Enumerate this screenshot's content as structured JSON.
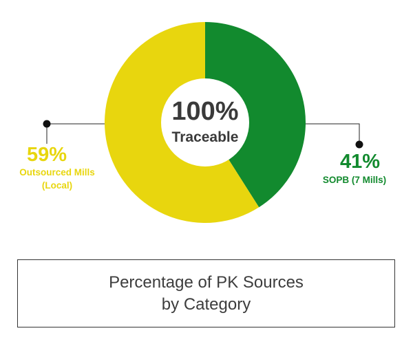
{
  "chart_data": {
    "type": "pie",
    "variant": "donut",
    "center_label": {
      "value": "100%",
      "text": "Traceable"
    },
    "slices": [
      {
        "label": "SOPB (7 Mills)",
        "value": 41,
        "value_label": "41%",
        "color": "#128a2e"
      },
      {
        "label_lines": [
          "Outsourced Mills",
          "(Local)"
        ],
        "value": 59,
        "value_label": "59%",
        "color": "#e8d60e"
      }
    ],
    "legend": "none",
    "colors": {
      "center_text": "#3a3a3a",
      "connector": "#222222",
      "background": "#ffffff"
    }
  },
  "caption": {
    "line1": "Percentage of PK Sources",
    "line2": "by Category"
  }
}
